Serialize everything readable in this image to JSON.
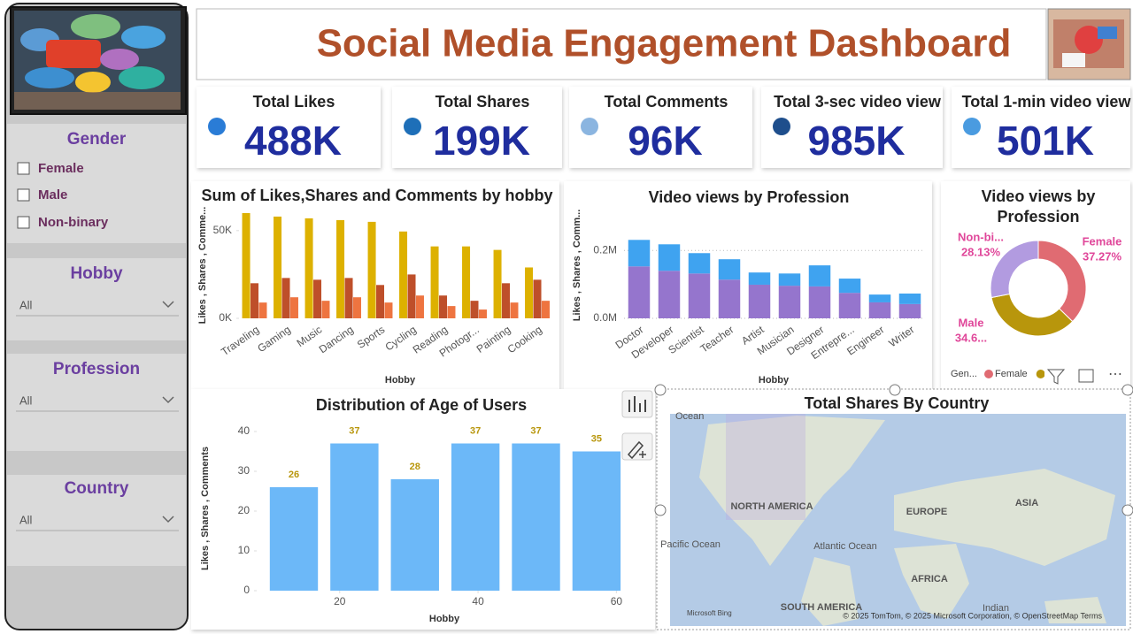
{
  "header": {
    "title": "Social Media Engagement Dashboard"
  },
  "kpis": [
    {
      "label": "Total Likes",
      "value": "488K"
    },
    {
      "label": "Total Shares",
      "value": "199K"
    },
    {
      "label": "Total Comments",
      "value": "96K"
    },
    {
      "label": "Total 3-sec video view",
      "value": "985K"
    },
    {
      "label": "Total 1-min video view",
      "value": "501K"
    }
  ],
  "slicers": [
    {
      "title": "Gender",
      "options": [
        "Female",
        "Male",
        "Non-binary"
      ]
    },
    {
      "title": "Hobby",
      "selection": "All"
    },
    {
      "title": "Profession",
      "selection": "All"
    },
    {
      "title": "Country",
      "selection": "All"
    }
  ],
  "chart_data": [
    {
      "type": "bar",
      "title": "Sum of Likes,Shares and Comments by hobby",
      "x_label": "Hobby",
      "y_label": "Likes , Shares , Comme...",
      "categories": [
        "Traveling",
        "Gaming",
        "Music",
        "Dancing",
        "Sports",
        "Cycling",
        "Reading",
        "Photogr...",
        "Painting",
        "Cooking"
      ],
      "series": [
        {
          "color": "#DDB100",
          "values": [
            60000,
            58000,
            57000,
            56000,
            55000,
            49500,
            41000,
            41000,
            39000,
            29000
          ]
        },
        {
          "color": "#BE4F2A",
          "values": [
            20000,
            23000,
            22000,
            23000,
            19000,
            25000,
            13000,
            10000,
            20000,
            22000
          ]
        },
        {
          "color": "#EE7440",
          "values": [
            9000,
            12000,
            10000,
            12000,
            9000,
            13000,
            7000,
            5000,
            9000,
            10000
          ]
        }
      ],
      "ylim": [
        0,
        62000
      ],
      "yticks": [
        {
          "value": 0,
          "label": "0K"
        },
        {
          "value": 50000,
          "label": "50K"
        }
      ],
      "grid": false
    },
    {
      "type": "bar",
      "stacked": true,
      "title": "Video views by Profession",
      "x_label": "Hobby",
      "y_label": "Likes , Shares , Comm...",
      "categories": [
        "Doctor",
        "Developer",
        "Scientist",
        "Teacher",
        "Artist",
        "Musician",
        "Designer",
        "Entrepre...",
        "Engineer",
        "Writer"
      ],
      "series": [
        {
          "color": "#9575CD",
          "values": [
            153000,
            140000,
            132000,
            114000,
            99000,
            96000,
            94000,
            75000,
            47000,
            42000
          ]
        },
        {
          "color": "#3FA3F0",
          "values": [
            78000,
            78000,
            60000,
            60000,
            36000,
            36000,
            62000,
            42000,
            23000,
            31000
          ]
        }
      ],
      "ylim": [
        0,
        250000
      ],
      "yticks": [
        {
          "value": 0,
          "label": "0.0M"
        },
        {
          "value": 200000,
          "label": "0.2M"
        }
      ],
      "grid": true
    },
    {
      "type": "pie",
      "donut": true,
      "title": "Video views by Profession",
      "categories": [
        "Female",
        "Male",
        "Non-bi..."
      ],
      "values": [
        37.27,
        34.6,
        28.13
      ],
      "value_labels": [
        "37.27%",
        "34.6...",
        "28.13%"
      ],
      "colors": [
        "#E06B72",
        "#B8960C",
        "#B29BE0"
      ],
      "label_color": "#E0479A",
      "legend_title": "Gen...",
      "legend": "bottom"
    },
    {
      "type": "histogram",
      "title": "Distribution of Age of Users",
      "x_label": "Hobby",
      "y_label": "Likes , Shares , Comments",
      "bins": [
        9,
        17.75,
        26.5,
        35.25,
        44,
        52.75,
        61.5
      ],
      "values": [
        26,
        37,
        28,
        37,
        37,
        35
      ],
      "color": "#6CB8F8",
      "label_color": "#B8960C",
      "xlim": [
        8,
        62
      ],
      "xticks": [
        20,
        40,
        60
      ],
      "ylim": [
        0,
        44
      ],
      "yticks": [
        0,
        10,
        20,
        30,
        40
      ],
      "grid": false
    }
  ],
  "map": {
    "title": "Total Shares By Country",
    "labels": [
      "Ocean",
      "NORTH AMERICA",
      "EUROPE",
      "ASIA",
      "Pacific Ocean",
      "Atlantic Ocean",
      "AFRICA",
      "SOUTH AMERICA",
      "Indian"
    ],
    "attribution": "Microsoft Bing",
    "copyright": "© 2025 TomTom, © 2025 Microsoft Corporation, © OpenStreetMap Terms"
  }
}
